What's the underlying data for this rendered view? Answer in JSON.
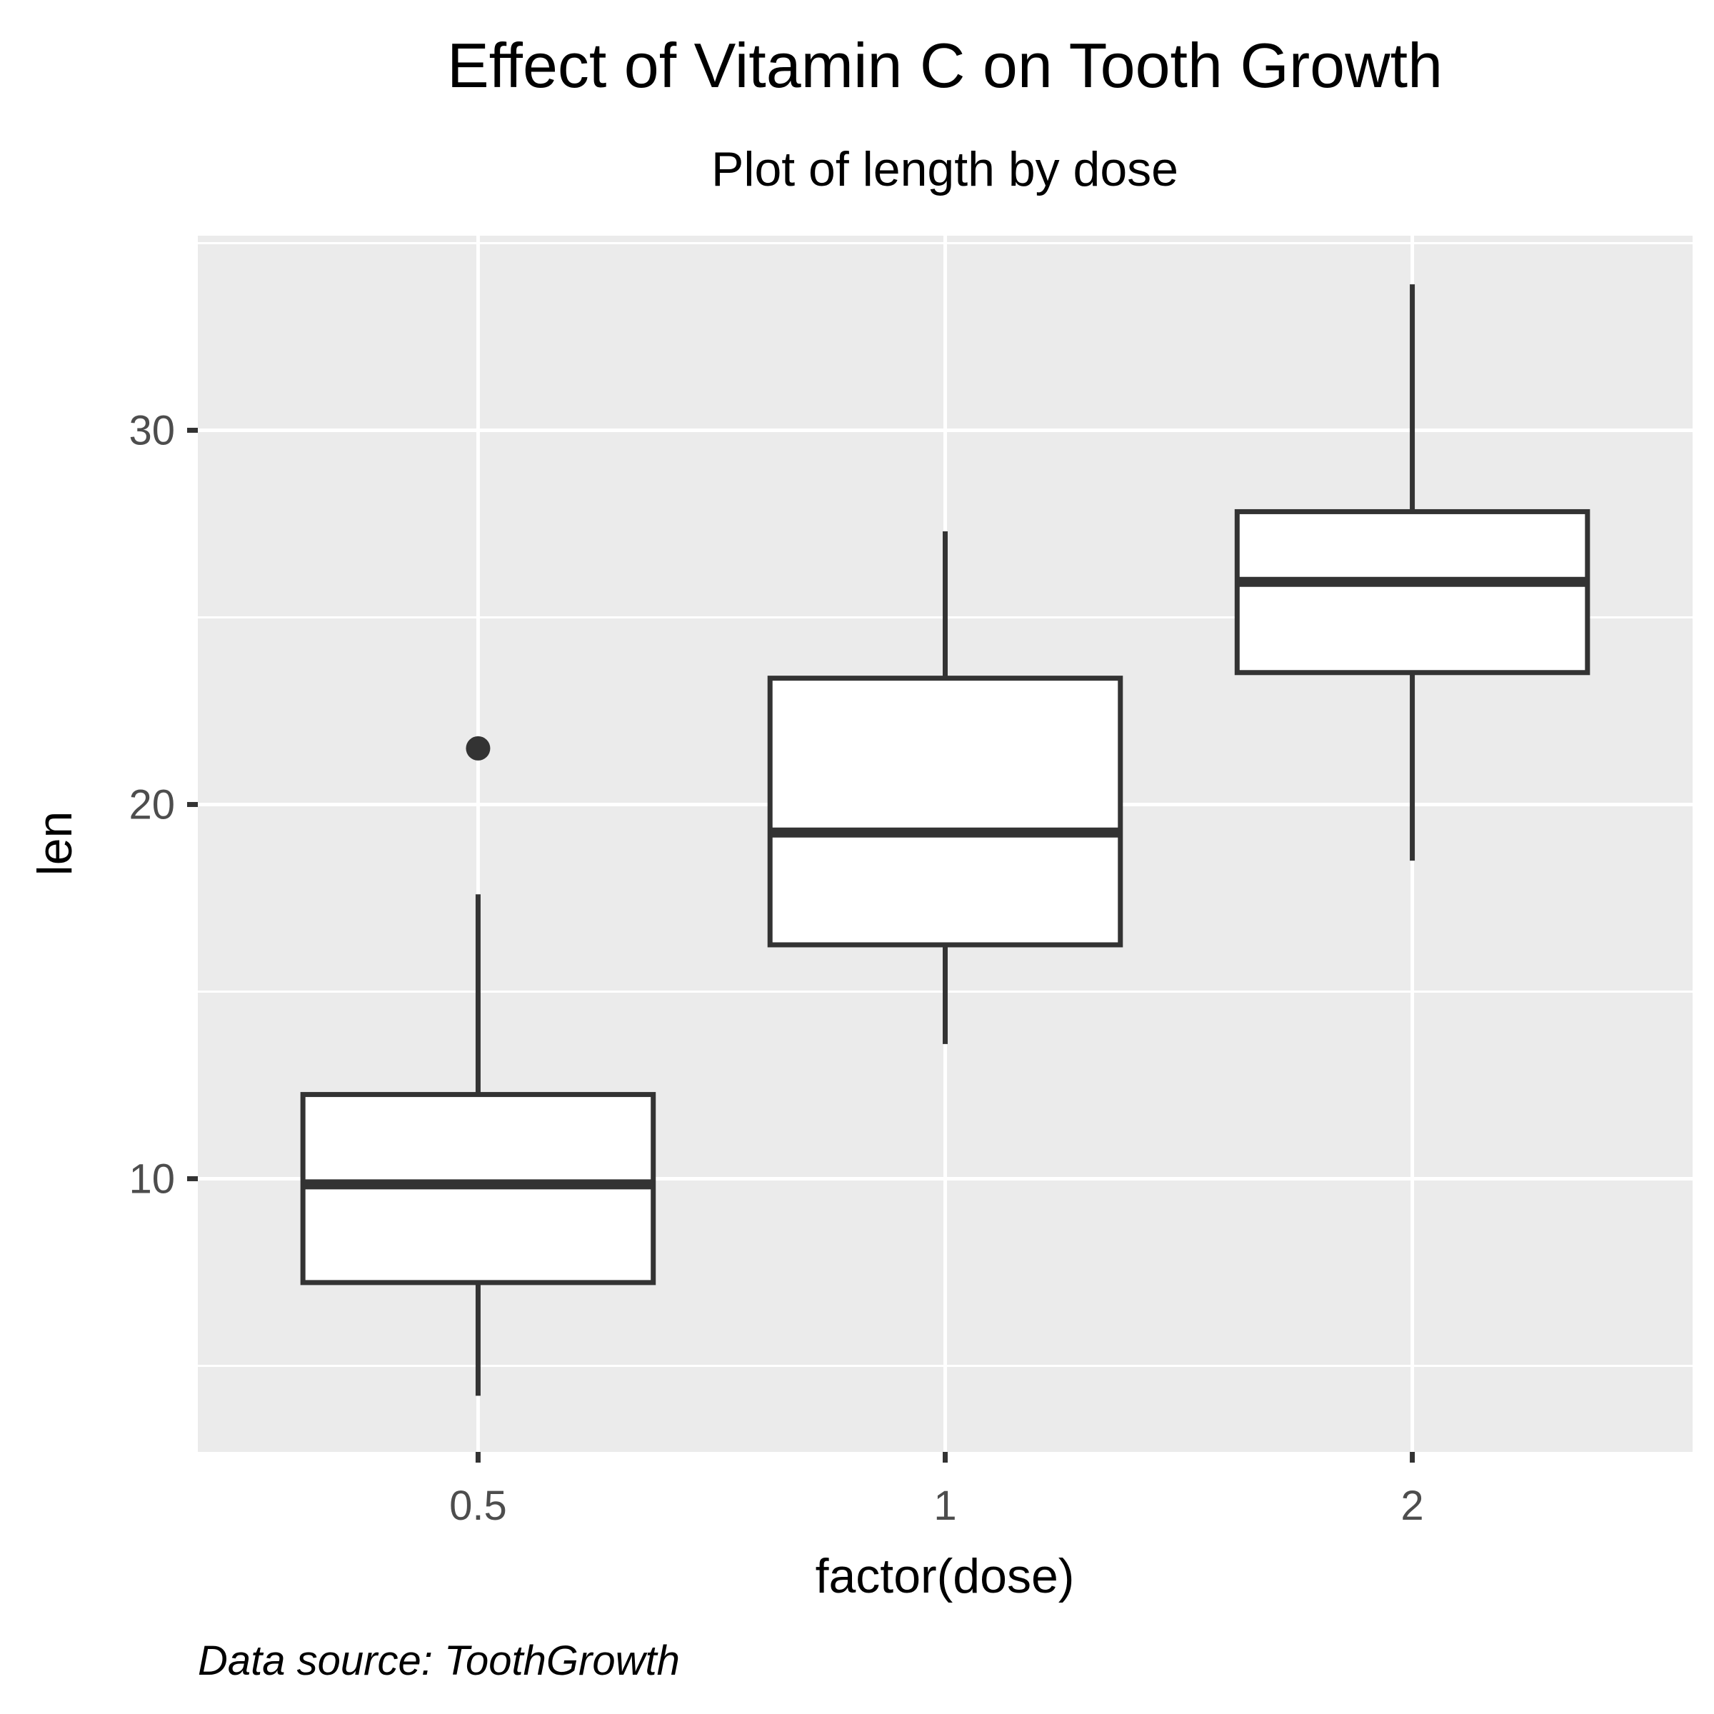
{
  "chart_data": {
    "type": "boxplot",
    "title": "Effect of Vitamin C on Tooth Growth",
    "subtitle": "Plot of length by dose",
    "xlabel": "factor(dose)",
    "ylabel": "len",
    "caption": "Data source: ToothGrowth",
    "categories": [
      "0.5",
      "1",
      "2"
    ],
    "ylim": [
      2.7,
      35.2
    ],
    "y_major_ticks": [
      10,
      20,
      30
    ],
    "y_major_tick_labels": [
      "10",
      "20",
      "30"
    ],
    "y_minor_gridlines": [
      5,
      15,
      25,
      35
    ],
    "grid": true,
    "boxes": [
      {
        "category": "0.5",
        "whisker_low": 4.2,
        "q1": 7.225,
        "median": 9.85,
        "q3": 12.25,
        "whisker_high": 17.6,
        "outliers": [
          21.5
        ]
      },
      {
        "category": "1",
        "whisker_low": 13.6,
        "q1": 16.25,
        "median": 19.25,
        "q3": 23.375,
        "whisker_high": 27.3,
        "outliers": []
      },
      {
        "category": "2",
        "whisker_low": 18.5,
        "q1": 23.525,
        "median": 25.95,
        "q3": 27.825,
        "whisker_high": 33.9,
        "outliers": []
      }
    ],
    "colors": {
      "panel_background": "#ebebeb",
      "gridline": "#ffffff",
      "box_outline": "#333333",
      "box_fill": "#ffffff",
      "tick_label": "#4d4d4d",
      "axis_tick": "#333333"
    }
  }
}
